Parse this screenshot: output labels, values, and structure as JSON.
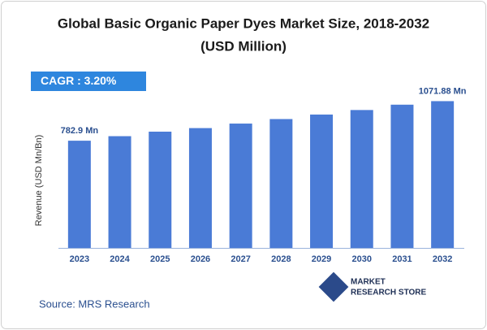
{
  "chart_data": {
    "type": "bar",
    "title": "Global Basic Organic Paper Dyes Market Size, 2018-2032",
    "subtitle": "(USD Million)",
    "cagr": "CAGR : 3.20%",
    "y_label": "Revenue (USD Mn/Bn)",
    "categories": [
      "2023",
      "2024",
      "2025",
      "2026",
      "2027",
      "2028",
      "2029",
      "2030",
      "2031",
      "2032"
    ],
    "values": [
      782.9,
      816,
      849,
      875,
      908,
      941,
      974,
      1007,
      1046,
      1071.88
    ],
    "value_labels": [
      "782.9 Mn",
      null,
      null,
      null,
      null,
      null,
      null,
      null,
      null,
      "1071.88 Mn"
    ],
    "color": "#4a7bd6",
    "ylim": [
      0,
      1300
    ],
    "source": "Source: MRS Research",
    "logo": [
      "MARKET",
      "RESEARCH STORE"
    ]
  }
}
